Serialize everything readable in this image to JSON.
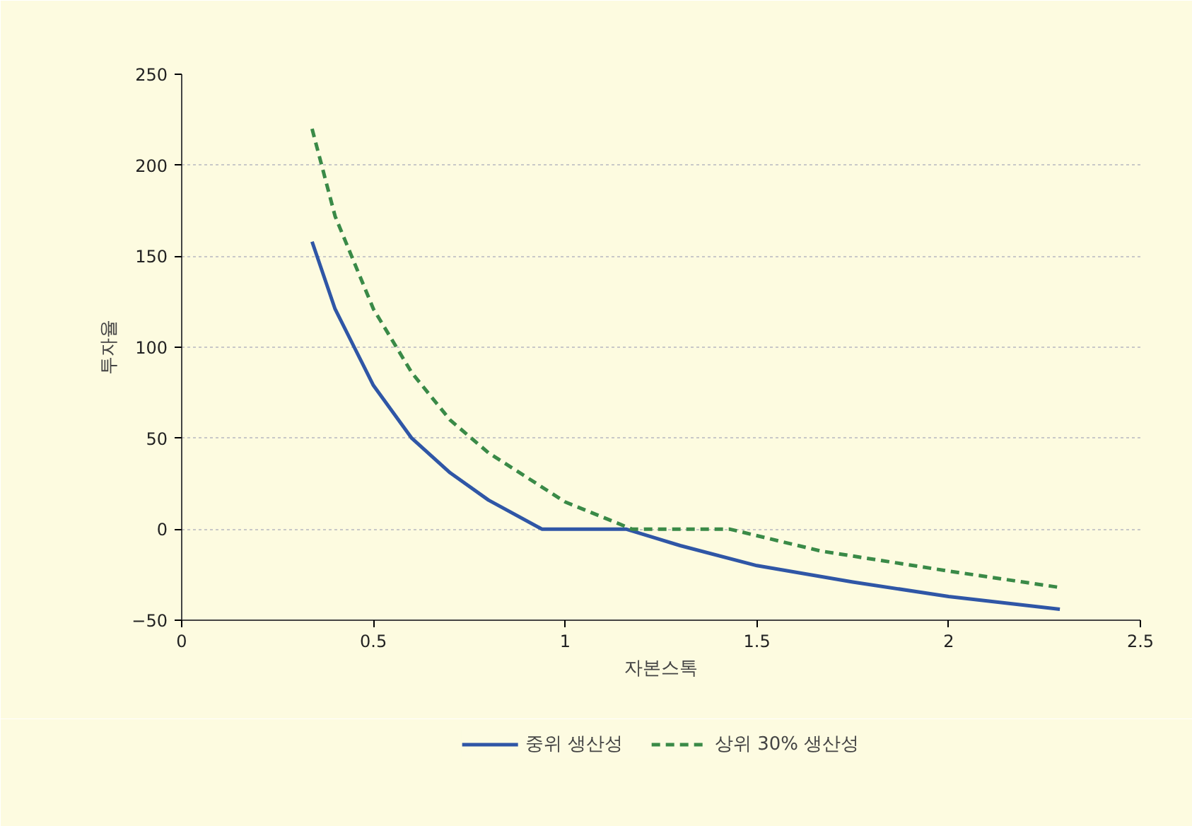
{
  "chart_data": {
    "type": "line",
    "xlabel": "자본스톡",
    "ylabel": "투자율",
    "xlim": [
      0,
      2.5
    ],
    "xticks": [
      0,
      0.5,
      1,
      1.5,
      2,
      2.5
    ],
    "ylim": [
      -50,
      250
    ],
    "yticks": [
      {
        "value": -50,
        "label": "−50"
      },
      0,
      50,
      100,
      150,
      200,
      250
    ],
    "grid": "y",
    "legend": "bottom",
    "series": [
      {
        "name": "중위 생산성",
        "color": "#2f56a6",
        "line_style": "solid",
        "x": [
          0.34,
          0.4,
          0.45,
          0.5,
          0.6,
          0.7,
          0.8,
          0.94,
          1.16,
          1.3,
          1.5,
          1.75,
          2.0,
          2.29
        ],
        "values": [
          158,
          121,
          100,
          79,
          50,
          31,
          16,
          0,
          0,
          -9,
          -20,
          -29,
          -37,
          -44
        ]
      },
      {
        "name": "상위 30% 생산성",
        "color": "#3a8a47",
        "line_style": "dashed",
        "x": [
          0.34,
          0.4,
          0.5,
          0.6,
          0.7,
          0.8,
          1.0,
          1.175,
          1.43,
          1.667,
          2.0,
          2.29
        ],
        "values": [
          220,
          172,
          121,
          86,
          60,
          42,
          15,
          0,
          0,
          -12,
          -23,
          -32
        ]
      }
    ]
  }
}
